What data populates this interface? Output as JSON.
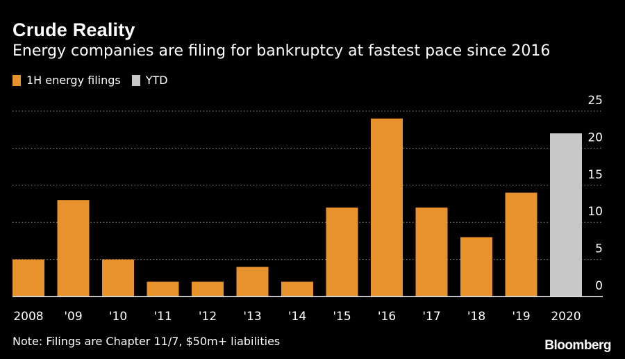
{
  "header": {
    "title": "Crude Reality",
    "subtitle": "Energy companies are filing for bankruptcy at fastest pace since 2016"
  },
  "legend": [
    {
      "label": "1H energy filings",
      "color": "#e8922d"
    },
    {
      "label": "YTD",
      "color": "#c8c8c8"
    }
  ],
  "footer": {
    "note": "Note: Filings are Chapter 11/7, $50m+ liabilities",
    "brand": "Bloomberg"
  },
  "chart_data": {
    "type": "bar",
    "categories": [
      "2008",
      "'09",
      "'10",
      "'11",
      "'12",
      "'13",
      "'14",
      "'15",
      "'16",
      "'17",
      "'18",
      "'19",
      "2020"
    ],
    "series": [
      {
        "name": "1H energy filings",
        "color": "#e8922d",
        "values": [
          5,
          13,
          5,
          2,
          2,
          4,
          2,
          12,
          24,
          12,
          8,
          14,
          null
        ]
      },
      {
        "name": "YTD",
        "color": "#c8c8c8",
        "values": [
          null,
          null,
          null,
          null,
          null,
          null,
          null,
          null,
          null,
          null,
          null,
          null,
          22
        ]
      }
    ],
    "ylim": [
      0,
      25
    ],
    "yticks": [
      0,
      5,
      10,
      15,
      20,
      25
    ],
    "y_axis_position": "right",
    "grid": "horizontal dotted",
    "legend_position": "top-left"
  }
}
